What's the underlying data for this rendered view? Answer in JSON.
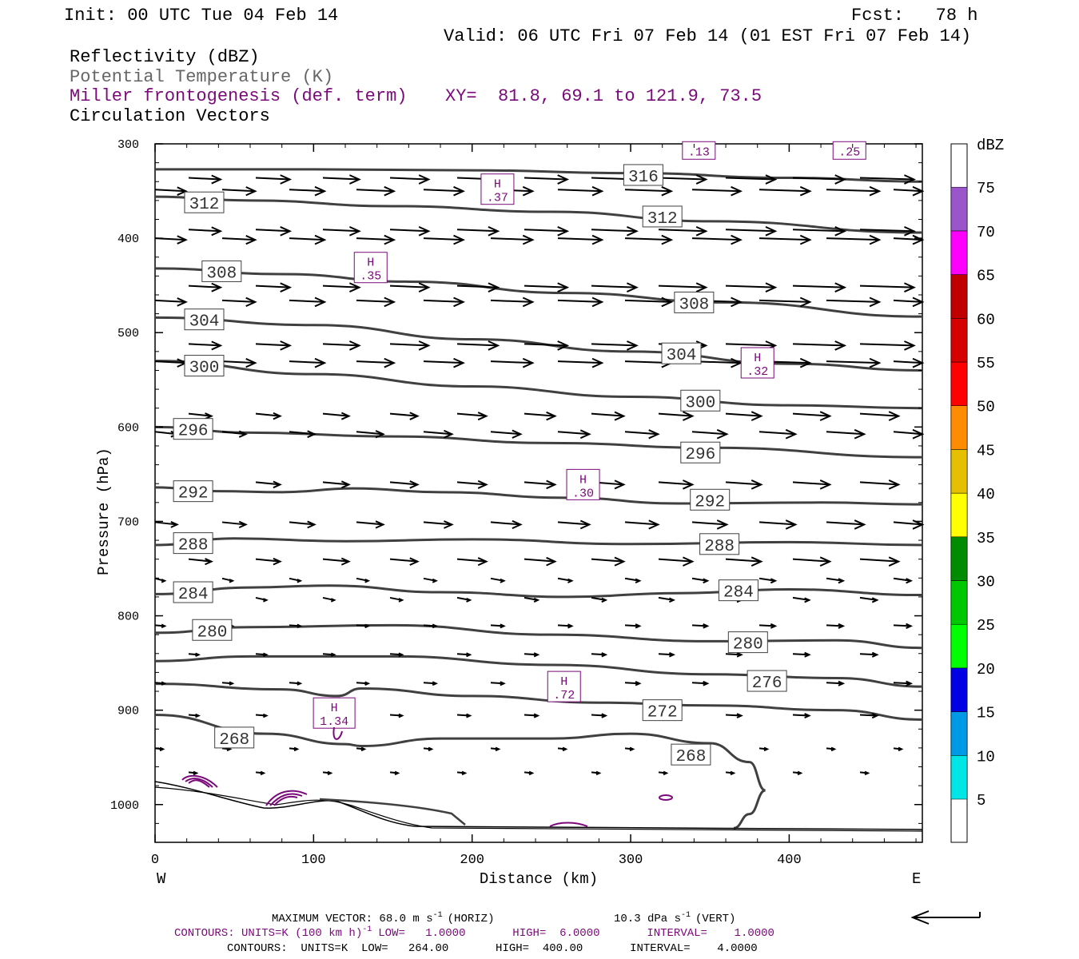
{
  "header": {
    "init": "Init: 00 UTC Tue 04 Feb 14",
    "fcst": "Fcst:   78 h",
    "valid": "Valid: 06 UTC Fri 07 Feb 14 (01 EST Fri 07 Feb 14)"
  },
  "fields": {
    "reflectivity": "Reflectivity (dBZ)",
    "theta": "Potential Temperature (K)",
    "frontogenesis": "Miller frontogenesis (def. term)",
    "xy": "XY=  81.8, 69.1 to 121.9, 73.5",
    "vectors": "Circulation Vectors"
  },
  "footer": {
    "max_vector": "MAXIMUM VECTOR:  68.0 m s",
    "max_vector_horiz": "(HORIZ)",
    "vert": "10.3 dPa s",
    "vert_suffix": "(VERT)",
    "contours1": "CONTOURS:  UNITS=K (100 km h)",
    "contours1_rest": "LOW=   1.0000       HIGH=  6.0000       INTERVAL=    1.0000",
    "contours2": "CONTOURS:  UNITS=K  LOW=   264.00       HIGH=  400.00       INTERVAL=    4.0000"
  },
  "colors": {
    "contour": "#404040",
    "fronto": "#7a0a7a",
    "vector": "#000000",
    "dbz_scale": [
      "#00e5e5",
      "#0099e5",
      "#0000e5",
      "#00ff00",
      "#00c800",
      "#008c00",
      "#ffff00",
      "#e5bf00",
      "#ff8c00",
      "#ff0000",
      "#d60000",
      "#c00000",
      "#ff00ff",
      "#9955c9"
    ]
  },
  "chart_data": {
    "type": "cross-section",
    "xlabel": "Distance (km)",
    "ylabel": "Pressure (hPa)",
    "xlim": [
      0,
      484
    ],
    "ylim": [
      1040,
      300
    ],
    "x_ticks": [
      "0",
      "100",
      "200",
      "300",
      "400"
    ],
    "y_ticks": [
      "300",
      "400",
      "500",
      "600",
      "700",
      "800",
      "900",
      "1000"
    ],
    "x_end_labels": {
      "left": "W",
      "right": "E"
    },
    "colorbar": {
      "title": "dBZ",
      "levels": [
        "5",
        "10",
        "15",
        "20",
        "25",
        "30",
        "35",
        "40",
        "45",
        "50",
        "55",
        "60",
        "65",
        "70",
        "75"
      ]
    },
    "isentropes": [
      {
        "label": "316",
        "label_pos": [
          308,
          333
        ],
        "points": [
          [
            0,
            327
          ],
          [
            100,
            327
          ],
          [
            200,
            328
          ],
          [
            300,
            331
          ],
          [
            400,
            336
          ],
          [
            484,
            340
          ]
        ]
      },
      {
        "label": "312",
        "label_pos": [
          31,
          362
        ],
        "label2": "312",
        "label2_pos": [
          320,
          377
        ],
        "points": [
          [
            0,
            356
          ],
          [
            60,
            360
          ],
          [
            150,
            366
          ],
          [
            250,
            372
          ],
          [
            350,
            382
          ],
          [
            484,
            394
          ]
        ]
      },
      {
        "label": "308",
        "label_pos": [
          42,
          435
        ],
        "label2": "308",
        "label2_pos": [
          340,
          468
        ],
        "points": [
          [
            0,
            432
          ],
          [
            80,
            438
          ],
          [
            160,
            446
          ],
          [
            260,
            458
          ],
          [
            360,
            468
          ],
          [
            484,
            483
          ]
        ]
      },
      {
        "label": "304",
        "label_pos": [
          31,
          486
        ],
        "label2": "304",
        "label2_pos": [
          332,
          522
        ],
        "points": [
          [
            0,
            484
          ],
          [
            100,
            492
          ],
          [
            200,
            507
          ],
          [
            300,
            520
          ],
          [
            400,
            533
          ],
          [
            484,
            540
          ]
        ]
      },
      {
        "label": "300",
        "label_pos": [
          31,
          535
        ],
        "label2": "300",
        "label2_pos": [
          344,
          572
        ],
        "points": [
          [
            0,
            530
          ],
          [
            100,
            544
          ],
          [
            200,
            557
          ],
          [
            300,
            568
          ],
          [
            400,
            577
          ],
          [
            484,
            580
          ]
        ]
      },
      {
        "label": "296",
        "label_pos": [
          24,
          602
        ],
        "label2": "296",
        "label2_pos": [
          344,
          627
        ],
        "points": [
          [
            0,
            600
          ],
          [
            60,
            606
          ],
          [
            150,
            610
          ],
          [
            250,
            617
          ],
          [
            350,
            622
          ],
          [
            484,
            632
          ]
        ]
      },
      {
        "label": "292",
        "label_pos": [
          24,
          668
        ],
        "label2": "292",
        "label2_pos": [
          350,
          677
        ],
        "points": [
          [
            0,
            664
          ],
          [
            40,
            668
          ],
          [
            80,
            669
          ],
          [
            125,
            665
          ],
          [
            180,
            669
          ],
          [
            260,
            675
          ],
          [
            330,
            681
          ],
          [
            420,
            680
          ],
          [
            484,
            682
          ]
        ]
      },
      {
        "label": "288",
        "label_pos": [
          24,
          723
        ],
        "label2": "288",
        "label2_pos": [
          356,
          724
        ],
        "points": [
          [
            0,
            725
          ],
          [
            50,
            718
          ],
          [
            120,
            721
          ],
          [
            200,
            719
          ],
          [
            300,
            724
          ],
          [
            400,
            722
          ],
          [
            484,
            725
          ]
        ]
      },
      {
        "label": "284",
        "label_pos": [
          24,
          775
        ],
        "label2": "284",
        "label2_pos": [
          368,
          773
        ],
        "points": [
          [
            0,
            777
          ],
          [
            60,
            770
          ],
          [
            110,
            768
          ],
          [
            180,
            775
          ],
          [
            260,
            780
          ],
          [
            330,
            776
          ],
          [
            400,
            772
          ],
          [
            484,
            778
          ]
        ]
      },
      {
        "label": "280",
        "label_pos": [
          36,
          815
        ],
        "label2": "280",
        "label2_pos": [
          374,
          828
        ],
        "points": [
          [
            0,
            818
          ],
          [
            60,
            812
          ],
          [
            150,
            810
          ],
          [
            250,
            820
          ],
          [
            350,
            827
          ],
          [
            430,
            826
          ],
          [
            484,
            834
          ]
        ]
      },
      {
        "label": "276",
        "label_pos": [
          386,
          869
        ],
        "points": [
          [
            0,
            848
          ],
          [
            60,
            843
          ],
          [
            150,
            843
          ],
          [
            250,
            852
          ],
          [
            350,
            862
          ],
          [
            430,
            866
          ],
          [
            484,
            875
          ]
        ]
      },
      {
        "label": "272",
        "label_pos": [
          320,
          900
        ],
        "points": [
          [
            0,
            872
          ],
          [
            80,
            878
          ],
          [
            115,
            885
          ],
          [
            130,
            877
          ],
          [
            200,
            885
          ],
          [
            280,
            892
          ],
          [
            350,
            895
          ],
          [
            430,
            900
          ],
          [
            484,
            910
          ]
        ]
      },
      {
        "label": "268",
        "label_pos": [
          338,
          947
        ],
        "label2": "268",
        "label2_pos": [
          50,
          929
        ],
        "points": [
          [
            0,
            905
          ],
          [
            70,
            925
          ],
          [
            120,
            936
          ],
          [
            130,
            938
          ],
          [
            180,
            930
          ],
          [
            250,
            930
          ],
          [
            300,
            925
          ],
          [
            350,
            935
          ],
          [
            375,
            955
          ],
          [
            385,
            985
          ],
          [
            375,
            1010
          ],
          [
            365,
            1025
          ]
        ]
      }
    ],
    "frontogenesis_maxima": [
      {
        "label": "H",
        "value": ".37",
        "x": 216,
        "p": 348
      },
      {
        "label": "H",
        "value": ".35",
        "x": 136,
        "p": 431
      },
      {
        "label": "H",
        "value": ".32",
        "x": 380,
        "p": 532
      },
      {
        "label": "H",
        "value": ".30",
        "x": 270,
        "p": 661
      },
      {
        "label": "H",
        "value": ".72",
        "x": 258,
        "p": 875
      },
      {
        "label": "H",
        "value": "1.34",
        "x": 113,
        "p": 903
      },
      {
        "label": "",
        "value": ".13",
        "x": 343,
        "p": 307
      },
      {
        "label": "",
        "value": ".25",
        "x": 438,
        "p": 307
      }
    ],
    "vector_rows_hPa": [
      336,
      348,
      390,
      400,
      450,
      465,
      512,
      530,
      585,
      605,
      658,
      700,
      740,
      760,
      780,
      810,
      840,
      870,
      905,
      940,
      965
    ]
  }
}
